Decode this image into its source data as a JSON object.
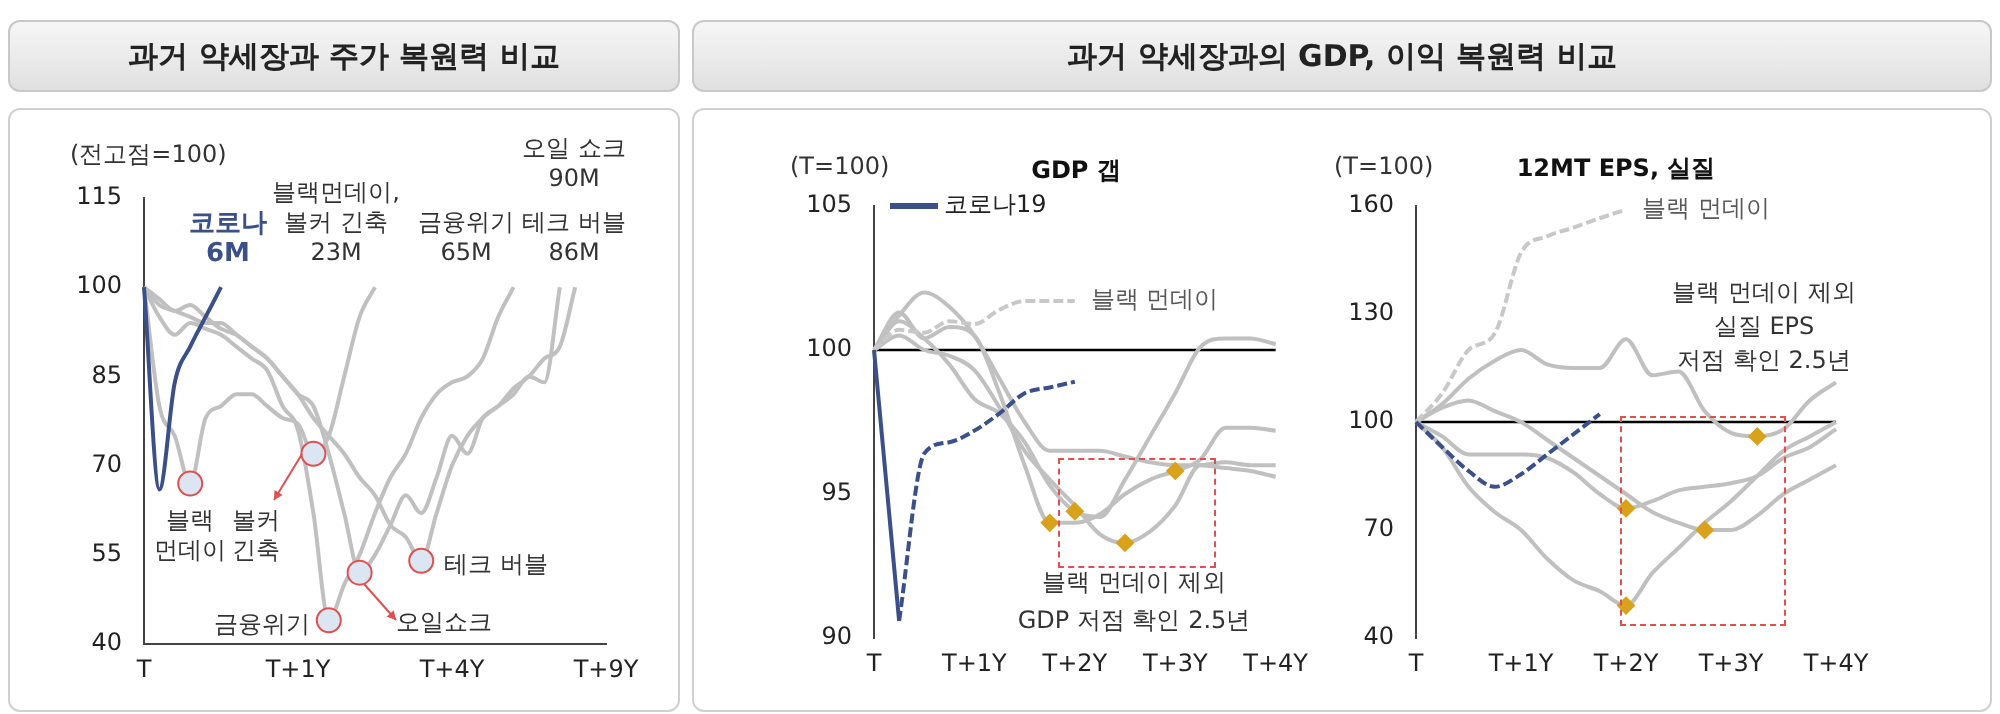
{
  "chart_data": [
    {
      "type": "line",
      "title": "과거 약세장과 주가 복원력 비교",
      "ylabel": "(전고점=100)",
      "categories": [
        "T",
        null,
        null,
        null,
        null,
        null,
        null,
        null,
        null,
        null,
        "T+1Y",
        null,
        null,
        null,
        null,
        null,
        null,
        null,
        null,
        null,
        "T+4Y",
        null,
        null,
        null,
        null,
        null,
        null,
        null,
        null,
        null,
        "T+9Y"
      ],
      "ylim": [
        40,
        115
      ],
      "yticks": [
        40,
        55,
        70,
        85,
        100,
        115
      ],
      "legend": false,
      "series": [
        {
          "color": "#3b5089",
          "values": [
            100,
            66,
            84,
            90,
            95,
            100,
            null,
            null,
            null,
            null,
            null,
            null,
            null,
            null,
            null,
            null,
            null,
            null,
            null,
            null,
            null,
            null,
            null,
            null,
            null,
            null,
            null,
            null,
            null,
            null,
            null
          ]
        },
        {
          "color": "#c0c0c0",
          "values": [
            100,
            80,
            75,
            67,
            78,
            80,
            82,
            82,
            80,
            78,
            77,
            72,
            75,
            85,
            95,
            100,
            null,
            null,
            null,
            null,
            null,
            null,
            null,
            null,
            null,
            null,
            null,
            null,
            null,
            null,
            null
          ]
        },
        {
          "color": "#c0c0c0",
          "values": [
            100,
            95,
            92,
            94,
            93,
            92,
            90,
            88,
            86,
            80,
            76,
            62,
            44,
            50,
            55,
            62,
            68,
            72,
            78,
            82,
            84,
            85,
            88,
            95,
            100,
            null,
            null,
            null,
            null,
            null,
            null
          ]
        },
        {
          "color": "#c0c0c0",
          "values": [
            100,
            97,
            96,
            95,
            94,
            94,
            92,
            90,
            88,
            85,
            82,
            80,
            72,
            62,
            52,
            55,
            60,
            65,
            62,
            68,
            75,
            72,
            78,
            80,
            83,
            85,
            88,
            90,
            100,
            null,
            null
          ]
        },
        {
          "color": "#c0c0c0",
          "values": [
            100,
            98,
            96,
            97,
            95,
            93,
            92,
            90,
            88,
            85,
            82,
            78,
            75,
            72,
            68,
            65,
            60,
            58,
            54,
            62,
            70,
            75,
            78,
            80,
            82,
            85,
            84,
            100,
            null,
            null,
            null
          ]
        },
        {
          "type": "scatter",
          "marker": "circle",
          "color": "#dce6f2",
          "values": [
            null,
            null,
            null,
            67,
            null,
            null,
            null,
            null,
            null,
            null,
            null,
            72,
            44,
            null,
            52,
            null,
            null,
            null,
            54,
            null,
            null,
            null,
            null,
            null,
            null,
            null,
            null,
            null,
            null,
            null,
            null
          ]
        }
      ],
      "annotations": [
        "코로나\n6M",
        "블랙먼데이,\n볼커 긴축\n23M",
        "금융위기\n65M",
        "오일 쇼크\n90M",
        "테크 버블\n86M",
        "블랙\n먼데이",
        "볼커\n긴축",
        "금융위기",
        "오일쇼크",
        "테크 버블"
      ]
    },
    {
      "type": "line",
      "title": "과거 약세장과의 GDP, 이익 복원력 비교",
      "subtitle": "GDP 갭",
      "ylabel": "(T=100)",
      "categories": [
        "T",
        null,
        null,
        null,
        "T+1Y",
        null,
        null,
        null,
        "T+2Y",
        null,
        null,
        null,
        "T+3Y",
        null,
        null,
        null,
        "T+4Y"
      ],
      "ylim": [
        90,
        105
      ],
      "yticks": [
        90,
        95,
        100,
        105
      ],
      "legend": "top left",
      "ref_lines": [
        {
          "axis": "y",
          "value": 100,
          "color": "#000000"
        }
      ],
      "series": [
        {
          "name": "코로나19",
          "color": "#3b5089",
          "values": [
            100,
            90.6,
            null,
            null,
            null,
            null,
            null,
            null,
            null,
            null,
            null,
            null,
            null,
            null,
            null,
            null,
            null
          ]
        },
        {
          "color": "#3b5089",
          "line_style": "dashed",
          "values": [
            null,
            90.6,
            96.4,
            96.8,
            97.2,
            97.8,
            98.5,
            98.7,
            98.9,
            null,
            null,
            null,
            null,
            null,
            null,
            null,
            null
          ]
        },
        {
          "name": "블랙 먼데이",
          "color": "#c8c8c8",
          "line_style": "dashed",
          "values": [
            100,
            100.7,
            100.6,
            101,
            100.9,
            101.4,
            101.7,
            101.7,
            101.7,
            null,
            null,
            null,
            null,
            null,
            null,
            null,
            null
          ]
        },
        {
          "color": "#c0c0c0",
          "values": [
            100,
            101.2,
            102,
            101.5,
            100.5,
            99,
            97.5,
            96.5,
            96.5,
            96.5,
            96.3,
            96.1,
            96,
            96,
            96.1,
            96,
            96
          ]
        },
        {
          "color": "#c0c0c0",
          "values": [
            100,
            101.3,
            100.4,
            100.8,
            100.5,
            98.5,
            96,
            94,
            94,
            94.3,
            95,
            95.5,
            95.8,
            96.2,
            97.3,
            97.3,
            97.2
          ]
        },
        {
          "color": "#c0c0c0",
          "values": [
            100,
            101,
            100.4,
            99.5,
            98.3,
            97.8,
            96.8,
            95.3,
            94.4,
            94.2,
            95.5,
            97,
            98.5,
            100.1,
            100.4,
            100.4,
            100.2
          ]
        },
        {
          "color": "#c0c0c0",
          "values": [
            100,
            100.5,
            100,
            99.8,
            99.3,
            98,
            96.5,
            95.5,
            94.6,
            93.6,
            93.3,
            93.7,
            94.6,
            96,
            95.9,
            95.8,
            95.6
          ]
        },
        {
          "type": "scatter",
          "marker": "diamond",
          "color": "#d9a21b",
          "values": [
            null,
            null,
            null,
            null,
            null,
            null,
            null,
            94,
            94.4,
            null,
            93.3,
            null,
            95.8,
            null,
            null,
            null,
            null
          ]
        }
      ],
      "annotations": [
        "블랙 먼데이 제외\nGDP 저점 확인 2.5년"
      ]
    },
    {
      "type": "line",
      "subtitle": "12MT EPS, 실질",
      "ylabel": "(T=100)",
      "categories": [
        "T",
        null,
        null,
        null,
        "T+1Y",
        null,
        null,
        null,
        "T+2Y",
        null,
        null,
        null,
        "T+3Y",
        null,
        null,
        null,
        "T+4Y"
      ],
      "ylim": [
        40,
        160
      ],
      "yticks": [
        40,
        70,
        100,
        130,
        160
      ],
      "ref_lines": [
        {
          "axis": "y",
          "value": 100,
          "color": "#000000"
        }
      ],
      "series": [
        {
          "color": "#3b5089",
          "line_style": "dashed",
          "values": [
            100,
            93,
            86.4,
            82,
            85.5,
            91,
            96.6,
            102.2,
            null,
            null,
            null,
            null,
            null,
            null,
            null,
            null,
            null
          ]
        },
        {
          "name": "블랙 먼데이",
          "color": "#c8c8c8",
          "line_style": "dashed",
          "values": [
            100,
            108,
            120,
            124.6,
            147,
            151.6,
            154,
            156.6,
            159,
            null,
            null,
            null,
            null,
            null,
            null,
            null,
            null
          ]
        },
        {
          "color": "#c0c0c0",
          "values": [
            100,
            105,
            112,
            117,
            120,
            116,
            115,
            115,
            123,
            113,
            114,
            103,
            97,
            96,
            98,
            106,
            111
          ]
        },
        {
          "color": "#c0c0c0",
          "values": [
            100,
            104,
            106,
            103,
            100,
            95,
            90,
            85,
            80,
            75,
            72,
            70,
            70,
            74,
            80,
            84,
            88
          ]
        },
        {
          "color": "#c0c0c0",
          "values": [
            100,
            96,
            91,
            91,
            91,
            90,
            86,
            80,
            76,
            78,
            81,
            82,
            83,
            85,
            90,
            93,
            98
          ]
        },
        {
          "color": "#c0c0c0",
          "values": [
            100,
            93,
            82,
            75,
            70,
            62,
            56,
            53,
            49,
            58,
            65,
            72,
            78,
            85,
            92,
            96,
            100
          ]
        },
        {
          "type": "scatter",
          "marker": "diamond",
          "color": "#d9a21b",
          "values": [
            null,
            null,
            null,
            null,
            null,
            null,
            null,
            null,
            76,
            null,
            null,
            70,
            null,
            96,
            null,
            null,
            null
          ]
        },
        {
          "type": "scatter",
          "marker": "diamond",
          "color": "#d9a21b",
          "values": [
            null,
            null,
            null,
            null,
            null,
            null,
            null,
            null,
            49,
            null,
            null,
            null,
            null,
            null,
            null,
            null,
            null
          ]
        }
      ],
      "annotations": [
        "블랙 먼데이 제외\n실질 EPS\n저점 확인 2.5년"
      ]
    }
  ]
}
